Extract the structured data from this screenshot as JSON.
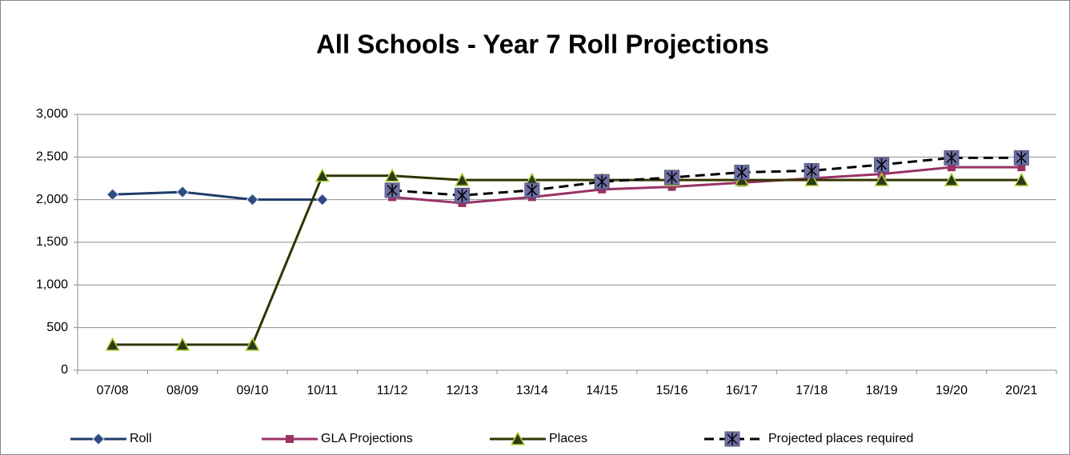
{
  "chart_data": {
    "type": "line",
    "title": "All Schools - Year 7 Roll Projections",
    "categories": [
      "07/08",
      "08/09",
      "09/10",
      "10/11",
      "11/12",
      "12/13",
      "13/14",
      "14/15",
      "15/16",
      "16/17",
      "17/18",
      "18/19",
      "19/20",
      "20/21"
    ],
    "series": [
      {
        "name": "Roll",
        "color": "#1f3b6b",
        "marker": "diamond",
        "marker_color": "#2a4a80",
        "dashed": false,
        "values": [
          2060,
          2090,
          2000,
          2000,
          null,
          null,
          null,
          null,
          null,
          null,
          null,
          null,
          null,
          null
        ]
      },
      {
        "name": "GLA Projections",
        "color": "#993366",
        "marker": "square",
        "marker_color": "#993366",
        "dashed": false,
        "values": [
          null,
          null,
          null,
          null,
          2030,
          1960,
          2030,
          2120,
          2150,
          2200,
          2250,
          2300,
          2380,
          2380
        ]
      },
      {
        "name": "Places",
        "color": "#333300",
        "marker": "triangle",
        "marker_color": "#2b3a1a",
        "dashed": false,
        "values": [
          300,
          300,
          300,
          2280,
          2280,
          2230,
          2230,
          2230,
          2230,
          2230,
          2230,
          2230,
          2230,
          2230
        ]
      },
      {
        "name": "Projected places required",
        "color": "#000000",
        "marker": "star-square",
        "marker_color": "#6f6fa8",
        "dashed": true,
        "values": [
          null,
          null,
          null,
          null,
          2110,
          2050,
          2110,
          2210,
          2260,
          2320,
          2340,
          2410,
          2490,
          2490
        ]
      }
    ],
    "ylim": [
      0,
      3000
    ],
    "yticks": [
      0,
      500,
      {
        "value": 1000,
        "label": "1,000"
      },
      {
        "value": 1500,
        "label": "1,500"
      },
      {
        "value": 2000,
        "label": "2,000"
      },
      {
        "value": 2500,
        "label": "2,500"
      },
      {
        "value": 3000,
        "label": "3,000"
      }
    ],
    "grid": true,
    "legend": "bottom"
  }
}
